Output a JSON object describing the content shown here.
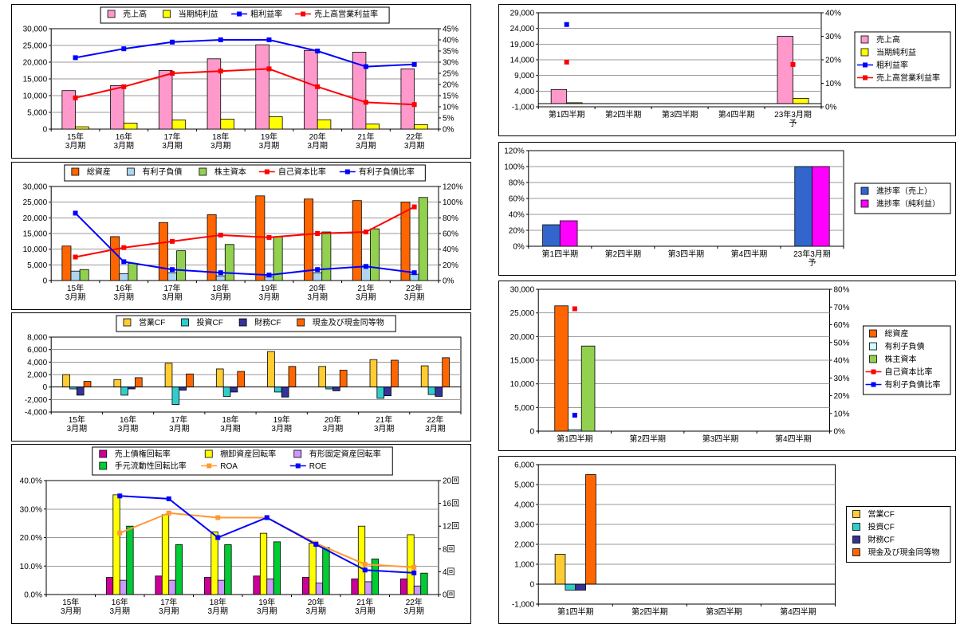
{
  "page": {
    "background": "#ffffff"
  },
  "chart_data": [
    {
      "name": "annual-sales-profit",
      "type": "combo",
      "legend": {
        "position": "top"
      },
      "categories": [
        [
          "15年",
          "3月期"
        ],
        [
          "16年",
          "3月期"
        ],
        [
          "17年",
          "3月期"
        ],
        [
          "18年",
          "3月期"
        ],
        [
          "19年",
          "3月期"
        ],
        [
          "20年",
          "3月期"
        ],
        [
          "21年",
          "3月期"
        ],
        [
          "22年",
          "3月期"
        ]
      ],
      "axes": {
        "left": {
          "min": 0,
          "max": 30000,
          "step": 5000,
          "format": "thousands"
        },
        "right": {
          "min": 0,
          "max": 45,
          "step": 5,
          "format": "percent"
        }
      },
      "series": [
        {
          "name": "売上高",
          "type": "bar",
          "axis": "left",
          "color": "#FF99CC",
          "values": [
            11500,
            13000,
            17500,
            21000,
            25200,
            23500,
            23000,
            18000
          ]
        },
        {
          "name": "当期純利益",
          "type": "bar",
          "axis": "left",
          "color": "#FFFF00",
          "values": [
            700,
            1800,
            2700,
            3000,
            3700,
            2800,
            1500,
            1300
          ]
        },
        {
          "name": "粗利益率",
          "type": "line",
          "axis": "right",
          "color": "#0000FF",
          "values": [
            32,
            36,
            39,
            40,
            40,
            35,
            28,
            29
          ]
        },
        {
          "name": "売上高営業利益率",
          "type": "line",
          "axis": "right",
          "color": "#FF0000",
          "values": [
            14,
            19,
            25,
            26,
            27,
            19,
            12,
            11
          ]
        }
      ]
    },
    {
      "name": "annual-balance-sheet",
      "type": "combo",
      "legend": {
        "position": "top"
      },
      "categories": [
        [
          "15年",
          "3月期"
        ],
        [
          "16年",
          "3月期"
        ],
        [
          "17年",
          "3月期"
        ],
        [
          "18年",
          "3月期"
        ],
        [
          "19年",
          "3月期"
        ],
        [
          "20年",
          "3月期"
        ],
        [
          "21年",
          "3月期"
        ],
        [
          "22年",
          "3月期"
        ]
      ],
      "axes": {
        "left": {
          "min": 0,
          "max": 30000,
          "step": 5000,
          "format": "thousands"
        },
        "right": {
          "min": 0,
          "max": 120,
          "step": 20,
          "format": "percent"
        }
      },
      "series": [
        {
          "name": "総資産",
          "type": "bar",
          "axis": "left",
          "color": "#FF6600",
          "values": [
            11000,
            14000,
            18500,
            21000,
            27000,
            26000,
            25500,
            25000
          ]
        },
        {
          "name": "有利子負債",
          "type": "bar",
          "axis": "left",
          "color": "#AED6F1",
          "values": [
            3000,
            2200,
            2500,
            1500,
            1200,
            2500,
            4500,
            2000
          ]
        },
        {
          "name": "株主資本",
          "type": "bar",
          "axis": "left",
          "color": "#92D050",
          "values": [
            3500,
            5500,
            9500,
            11500,
            14000,
            15500,
            16500,
            26500
          ]
        },
        {
          "name": "自己資本比率",
          "type": "line",
          "axis": "right",
          "color": "#FF0000",
          "values": [
            30,
            42,
            50,
            58,
            55,
            60,
            62,
            94
          ]
        },
        {
          "name": "有利子負債比率",
          "type": "line",
          "axis": "right",
          "color": "#0000FF",
          "values": [
            86,
            24,
            14,
            10,
            7,
            14,
            18,
            10
          ]
        }
      ]
    },
    {
      "name": "annual-cashflow",
      "type": "bar",
      "legend": {
        "position": "top"
      },
      "categories": [
        [
          "15年",
          "3月期"
        ],
        [
          "16年",
          "3月期"
        ],
        [
          "17年",
          "3月期"
        ],
        [
          "18年",
          "3月期"
        ],
        [
          "19年",
          "3月期"
        ],
        [
          "20年",
          "3月期"
        ],
        [
          "21年",
          "3月期"
        ],
        [
          "22年",
          "3月期"
        ]
      ],
      "axes": {
        "left": {
          "min": -4000,
          "max": 8000,
          "step": 2000,
          "format": "thousands"
        }
      },
      "series": [
        {
          "name": "営業CF",
          "type": "bar",
          "axis": "left",
          "color": "#FFCC33",
          "values": [
            2000,
            1200,
            3800,
            2900,
            5700,
            3300,
            4400,
            3400
          ]
        },
        {
          "name": "投資CF",
          "type": "bar",
          "axis": "left",
          "color": "#33CCCC",
          "values": [
            -300,
            -1300,
            -2800,
            -1500,
            -800,
            -300,
            -1800,
            -1200
          ]
        },
        {
          "name": "財務CF",
          "type": "bar",
          "axis": "left",
          "color": "#333399",
          "values": [
            -1300,
            -300,
            -500,
            -800,
            -1600,
            -600,
            -1400,
            -1500
          ]
        },
        {
          "name": "現金及び現金同等物",
          "type": "bar",
          "axis": "left",
          "color": "#FF6600",
          "values": [
            900,
            1500,
            2100,
            2500,
            3300,
            2700,
            4300,
            4700
          ]
        }
      ]
    },
    {
      "name": "annual-efficiency",
      "type": "combo",
      "legend": {
        "position": "top",
        "cols": 3
      },
      "categories": [
        [
          "15年",
          "3月期"
        ],
        [
          "16年",
          "3月期"
        ],
        [
          "17年",
          "3月期"
        ],
        [
          "18年",
          "3月期"
        ],
        [
          "19年",
          "3月期"
        ],
        [
          "20年",
          "3月期"
        ],
        [
          "21年",
          "3月期"
        ],
        [
          "22年",
          "3月期"
        ]
      ],
      "axes": {
        "left": {
          "min": 0,
          "max": 40,
          "step": 10,
          "format": "percent1"
        },
        "right": {
          "min": 0,
          "max": 20,
          "step": 4,
          "format": "kai"
        }
      },
      "series": [
        {
          "name": "売上債権回転率",
          "type": "bar",
          "axis": "left",
          "color": "#CC0099",
          "values": [
            null,
            6,
            6.5,
            6,
            6.5,
            6,
            5.5,
            5.5
          ]
        },
        {
          "name": "棚卸資産回転率",
          "type": "bar",
          "axis": "left",
          "color": "#FFFF00",
          "values": [
            null,
            35,
            28,
            22,
            21.5,
            18,
            24,
            21
          ]
        },
        {
          "name": "有形固定資産回転率",
          "type": "bar",
          "axis": "left",
          "color": "#CC99FF",
          "values": [
            null,
            5,
            5,
            5,
            5.5,
            4,
            4.5,
            3
          ]
        },
        {
          "name": "手元流動性回転比率",
          "type": "bar",
          "axis": "left",
          "color": "#00CC33",
          "values": [
            null,
            24,
            17.5,
            17.5,
            18.5,
            16.5,
            12.5,
            7.5
          ]
        },
        {
          "name": "ROA",
          "type": "line",
          "axis": "right",
          "color": "#FF9933",
          "values": [
            null,
            10.8,
            14.3,
            13.5,
            13.5,
            9,
            5.3,
            4.8
          ]
        },
        {
          "name": "ROE",
          "type": "line",
          "axis": "right",
          "color": "#0000FF",
          "values": [
            null,
            17.3,
            16.8,
            10,
            13.5,
            8.8,
            4.3,
            3.8
          ]
        }
      ]
    },
    {
      "name": "quarterly-sales-profit",
      "type": "combo",
      "legend": {
        "position": "right"
      },
      "categories": [
        [
          "第1四半期"
        ],
        [
          "第2四半期"
        ],
        [
          "第3四半期"
        ],
        [
          "第4四半期"
        ],
        [
          "23年3月期",
          "予"
        ]
      ],
      "axes": {
        "left": {
          "min": -1000,
          "max": 29000,
          "step": 5000,
          "format": "thousands"
        },
        "right": {
          "min": 0,
          "max": 40,
          "step": 10,
          "format": "percent"
        }
      },
      "series": [
        {
          "name": "売上高",
          "type": "bar",
          "axis": "left",
          "color": "#FF99CC",
          "values": [
            4500,
            null,
            null,
            null,
            21500
          ]
        },
        {
          "name": "当期純利益",
          "type": "bar",
          "axis": "left",
          "color": "#FFFF00",
          "values": [
            300,
            null,
            null,
            null,
            1700
          ]
        },
        {
          "name": "粗利益率",
          "type": "line",
          "axis": "right",
          "color": "#0000FF",
          "values": [
            35,
            null,
            null,
            null,
            null
          ]
        },
        {
          "name": "売上高営業利益率",
          "type": "line",
          "axis": "right",
          "color": "#FF0000",
          "values": [
            19,
            null,
            null,
            null,
            18
          ]
        }
      ]
    },
    {
      "name": "quarterly-progress",
      "type": "bar",
      "legend": {
        "position": "right"
      },
      "categories": [
        [
          "第1四半期"
        ],
        [
          "第2四半期"
        ],
        [
          "第3四半期"
        ],
        [
          "第4四半期"
        ],
        [
          "23年3月期",
          "予"
        ]
      ],
      "axes": {
        "left": {
          "min": 0,
          "max": 120,
          "step": 20,
          "format": "percent"
        }
      },
      "series": [
        {
          "name": "進捗率（売上）",
          "type": "bar",
          "axis": "left",
          "color": "#3366CC",
          "values": [
            27,
            null,
            null,
            null,
            100
          ]
        },
        {
          "name": "進捗率（純利益）",
          "type": "bar",
          "axis": "left",
          "color": "#FF00FF",
          "values": [
            32,
            null,
            null,
            null,
            100
          ]
        }
      ]
    },
    {
      "name": "quarterly-balance-sheet",
      "type": "combo",
      "legend": {
        "position": "right"
      },
      "categories": [
        [
          "第1四半期"
        ],
        [
          "第2四半期"
        ],
        [
          "第3四半期"
        ],
        [
          "第4四半期"
        ]
      ],
      "axes": {
        "left": {
          "min": 0,
          "max": 30000,
          "step": 5000,
          "format": "thousands"
        },
        "right": {
          "min": 0,
          "max": 80,
          "step": 10,
          "format": "percent"
        }
      },
      "series": [
        {
          "name": "総資産",
          "type": "bar",
          "axis": "left",
          "color": "#FF6600",
          "values": [
            26500,
            null,
            null,
            null
          ]
        },
        {
          "name": "有利子負債",
          "type": "bar",
          "axis": "left",
          "color": "#CCFFFF",
          "values": [
            300,
            null,
            null,
            null
          ]
        },
        {
          "name": "株主資本",
          "type": "bar",
          "axis": "left",
          "color": "#92D050",
          "values": [
            18000,
            null,
            null,
            null
          ]
        },
        {
          "name": "自己資本比率",
          "type": "line",
          "axis": "right",
          "color": "#FF0000",
          "values": [
            69,
            null,
            null,
            null
          ]
        },
        {
          "name": "有利子負債比率",
          "type": "line",
          "axis": "right",
          "color": "#0000FF",
          "values": [
            9,
            null,
            null,
            null
          ]
        }
      ]
    },
    {
      "name": "quarterly-cashflow",
      "type": "bar",
      "legend": {
        "position": "right"
      },
      "categories": [
        [
          "第1四半期"
        ],
        [
          "第2四半期"
        ],
        [
          "第3四半期"
        ],
        [
          "第4四半期"
        ]
      ],
      "axes": {
        "left": {
          "min": -1000,
          "max": 6000,
          "step": 1000,
          "format": "thousands"
        }
      },
      "series": [
        {
          "name": "営業CF",
          "type": "bar",
          "axis": "left",
          "color": "#FFCC33",
          "values": [
            1500,
            null,
            null,
            null
          ]
        },
        {
          "name": "投資CF",
          "type": "bar",
          "axis": "left",
          "color": "#33CCCC",
          "values": [
            -300,
            null,
            null,
            null
          ]
        },
        {
          "name": "財務CF",
          "type": "bar",
          "axis": "left",
          "color": "#333399",
          "values": [
            -300,
            null,
            null,
            null
          ]
        },
        {
          "name": "現金及び現金同等物",
          "type": "bar",
          "axis": "left",
          "color": "#FF6600",
          "values": [
            5500,
            null,
            null,
            null
          ]
        }
      ]
    }
  ]
}
